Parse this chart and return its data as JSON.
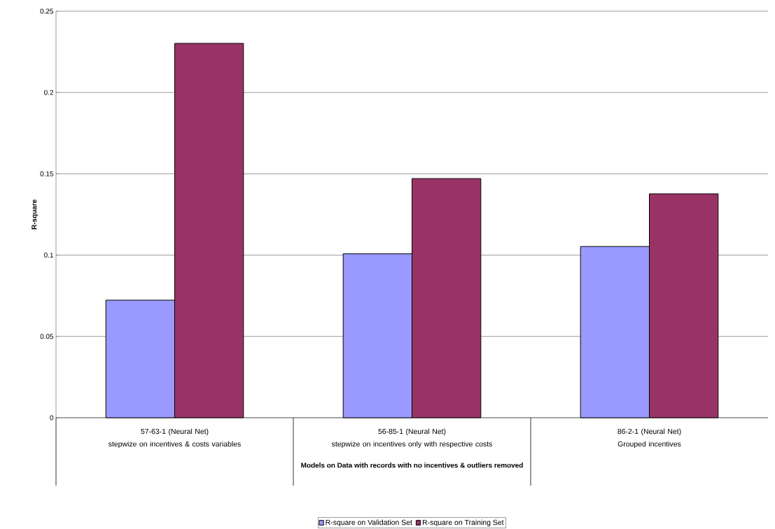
{
  "chart_data": {
    "type": "bar",
    "xlabel": "Models on Data with records with no incentives & outliers removed",
    "ylabel": "R-square",
    "categories": [
      "57-63-1 (Neural Net)",
      "56-85-1 (Neural Net)",
      "86-2-1 (Neural Net)"
    ],
    "annotations": [
      "stepwize on incentives & costs variables",
      "stepwize on incentives only with respective costs",
      "Grouped incentives"
    ],
    "series": [
      {
        "name": "R-square on Validation Set",
        "color": "#9999ff",
        "values": [
          0.0723,
          0.1008,
          0.1053
        ]
      },
      {
        "name": "R-square on Training Set",
        "color": "#993366",
        "values": [
          0.2302,
          0.1471,
          0.1377
        ]
      }
    ],
    "ylim": [
      0,
      0.25
    ],
    "yticks": [
      0,
      0.05,
      0.1,
      0.15,
      0.2,
      0.25
    ],
    "grid": "y",
    "legend": "bottom"
  }
}
